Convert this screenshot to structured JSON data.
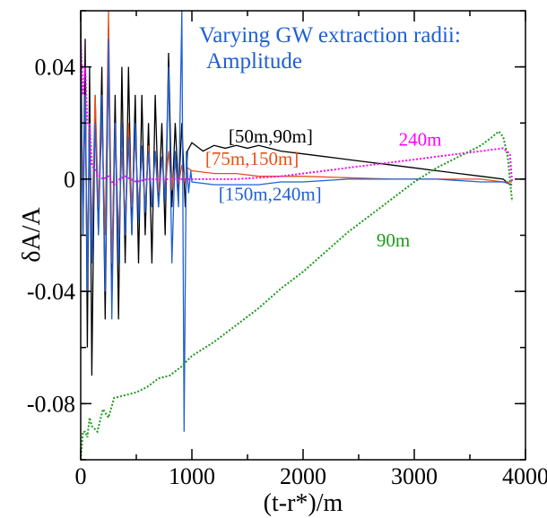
{
  "chart_data": {
    "type": "line",
    "title": "Varying GW extraction radii:",
    "subtitle": "Amplitude",
    "title_color": "#1f5fd6",
    "xlabel": "(t-r*)/m",
    "ylabel": "δA/A",
    "xlim": [
      0,
      4000
    ],
    "ylim": [
      -0.1,
      0.06
    ],
    "x_ticks": [
      {
        "value": 0,
        "label": "0"
      },
      {
        "value": 1000,
        "label": "1000"
      },
      {
        "value": 2000,
        "label": "2000"
      },
      {
        "value": 3000,
        "label": "3000"
      },
      {
        "value": 4000,
        "label": "4000"
      }
    ],
    "y_ticks": [
      {
        "value": 0.04,
        "label": "0.04"
      },
      {
        "value": 0,
        "label": "0"
      },
      {
        "value": -0.04,
        "label": "-0.04"
      },
      {
        "value": -0.08,
        "label": "-0.08"
      }
    ],
    "grid": false,
    "series": [
      {
        "name": "[50m,90m]",
        "color": "#000000",
        "style": "solid",
        "x": [
          0,
          20,
          40,
          60,
          80,
          100,
          130,
          160,
          190,
          220,
          250,
          280,
          310,
          340,
          370,
          400,
          430,
          460,
          490,
          520,
          550,
          580,
          610,
          640,
          670,
          700,
          730,
          760,
          790,
          820,
          850,
          880,
          910,
          940,
          960,
          1000,
          1100,
          1200,
          1300,
          1400,
          1500,
          1600,
          1700,
          1800,
          2000,
          2200,
          2400,
          2600,
          2800,
          3000,
          3200,
          3400,
          3600,
          3800,
          3860,
          3880
        ],
        "y": [
          0.06,
          -0.02,
          0.05,
          -0.06,
          0.04,
          -0.07,
          0.03,
          -0.02,
          0.04,
          -0.05,
          0.05,
          -0.04,
          0.03,
          -0.05,
          0.04,
          -0.03,
          0.04,
          -0.02,
          0.03,
          -0.03,
          0.03,
          -0.02,
          0.02,
          -0.03,
          0.03,
          -0.01,
          0.02,
          -0.02,
          0.045,
          -0.01,
          0.02,
          -0.005,
          0.02,
          -0.01,
          0.01,
          0.013,
          0.01,
          0.012,
          0.011,
          0.012,
          0.011,
          0.012,
          0.011,
          0.01,
          0.009,
          0.008,
          0.007,
          0.006,
          0.005,
          0.004,
          0.003,
          0.002,
          0.001,
          0.0,
          -0.002,
          -0.002
        ]
      },
      {
        "name": "[75m,150m]",
        "color": "#e8501a",
        "style": "solid",
        "x": [
          0,
          20,
          40,
          60,
          80,
          100,
          130,
          160,
          190,
          220,
          250,
          280,
          310,
          340,
          370,
          400,
          430,
          460,
          490,
          520,
          550,
          580,
          610,
          640,
          670,
          700,
          730,
          760,
          790,
          820,
          850,
          880,
          910,
          940,
          960,
          1000,
          1200,
          1400,
          1600,
          1800,
          2000,
          2400,
          2800,
          3200,
          3600,
          3800,
          3880
        ],
        "y": [
          0.04,
          -0.01,
          0.03,
          -0.03,
          0.02,
          -0.02,
          0.03,
          -0.01,
          0.02,
          -0.02,
          0.06,
          -0.03,
          0.02,
          -0.02,
          0.01,
          -0.015,
          0.02,
          -0.01,
          0.015,
          -0.01,
          0.01,
          -0.01,
          0.012,
          -0.008,
          0.01,
          -0.005,
          0.008,
          -0.004,
          0.01,
          -0.004,
          0.006,
          -0.002,
          0.005,
          -0.002,
          0.004,
          0.003,
          0.002,
          0.002,
          0.001,
          0.001,
          0.001,
          0.0005,
          0.0,
          0.0,
          0.0,
          -0.001,
          -0.001
        ]
      },
      {
        "name": "[150m,240m]",
        "color": "#1f5fd6",
        "style": "solid",
        "x": [
          0,
          20,
          40,
          60,
          80,
          100,
          130,
          160,
          190,
          220,
          250,
          280,
          310,
          340,
          370,
          400,
          430,
          460,
          490,
          520,
          550,
          580,
          610,
          640,
          670,
          700,
          730,
          760,
          790,
          820,
          850,
          880,
          910,
          930,
          950,
          970,
          990,
          1000,
          1200,
          1400,
          1600,
          1800,
          2000,
          2400,
          2800,
          3200,
          3600,
          3800,
          3880
        ],
        "y": [
          0.05,
          -0.02,
          0.03,
          -0.04,
          0.02,
          -0.03,
          0.02,
          -0.02,
          0.03,
          -0.04,
          0.05,
          -0.05,
          0.02,
          -0.03,
          0.02,
          -0.02,
          0.015,
          -0.02,
          0.02,
          -0.015,
          0.012,
          -0.012,
          0.01,
          -0.01,
          0.01,
          -0.01,
          0.008,
          -0.008,
          0.04,
          -0.03,
          0.01,
          -0.01,
          0.06,
          -0.09,
          0.01,
          -0.005,
          0.003,
          -0.001,
          -0.002,
          -0.002,
          -0.002,
          -0.001,
          -0.001,
          0.0,
          0.0,
          0.0,
          -0.001,
          -0.001,
          -0.002
        ]
      },
      {
        "name": "240m",
        "color": "#ff00ff",
        "style": "dotted",
        "x": [
          0,
          20,
          40,
          60,
          80,
          100,
          150,
          200,
          250,
          300,
          350,
          400,
          500,
          600,
          700,
          800,
          900,
          1000,
          1200,
          1400,
          1600,
          1800,
          2000,
          2200,
          2400,
          2600,
          2800,
          3000,
          3200,
          3400,
          3600,
          3800,
          3860,
          3880
        ],
        "y": [
          0.05,
          0.03,
          0.04,
          0.02,
          0.02,
          0.005,
          0.002,
          0.0,
          0.001,
          -0.002,
          0.0,
          0.001,
          -0.001,
          0.0,
          0.0,
          0.0,
          0.0,
          0.0,
          0.0,
          0.0,
          0.0005,
          0.001,
          0.002,
          0.003,
          0.004,
          0.005,
          0.006,
          0.007,
          0.008,
          0.009,
          0.01,
          0.011,
          0.009,
          -0.001
        ]
      },
      {
        "name": "90m",
        "color": "#1a9a1a",
        "style": "dotted",
        "x": [
          0,
          20,
          40,
          60,
          80,
          100,
          150,
          200,
          250,
          300,
          400,
          500,
          600,
          700,
          800,
          900,
          1000,
          1200,
          1400,
          1600,
          1800,
          2000,
          2200,
          2400,
          2600,
          2800,
          3000,
          3200,
          3400,
          3600,
          3700,
          3760,
          3800,
          3840,
          3880
        ],
        "y": [
          -0.1,
          -0.09,
          -0.09,
          -0.092,
          -0.085,
          -0.088,
          -0.09,
          -0.082,
          -0.085,
          -0.078,
          -0.077,
          -0.076,
          -0.074,
          -0.071,
          -0.07,
          -0.067,
          -0.063,
          -0.058,
          -0.052,
          -0.046,
          -0.039,
          -0.033,
          -0.026,
          -0.019,
          -0.013,
          -0.007,
          -0.001,
          0.004,
          0.008,
          0.012,
          0.015,
          0.017,
          0.015,
          0.008,
          -0.008
        ]
      }
    ],
    "annotations": [
      {
        "text": "[50m,90m]",
        "series": "[50m,90m]",
        "x": 1330,
        "y": 0.013
      },
      {
        "text": "[75m,150m]",
        "series": "[75m,150m]",
        "x": 1120,
        "y": 0.005
      },
      {
        "text": "[150m,240m]",
        "series": "[150m,240m]",
        "x": 1240,
        "y": -0.0075
      },
      {
        "text": "240m",
        "series": "240m",
        "x": 2860,
        "y": 0.012
      },
      {
        "text": "90m",
        "series": "90m",
        "x": 2660,
        "y": -0.024
      }
    ]
  }
}
